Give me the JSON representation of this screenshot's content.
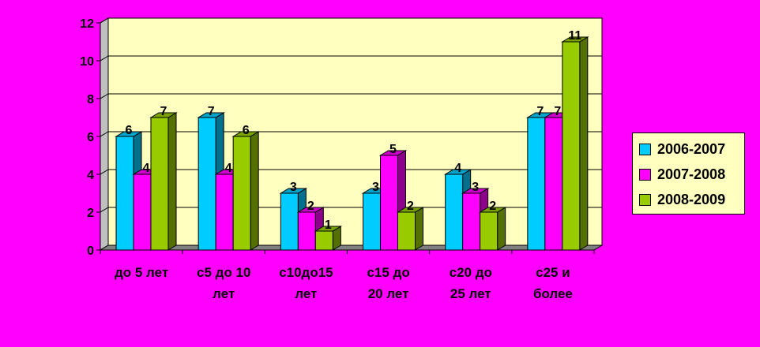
{
  "chart_data": {
    "type": "bar",
    "categories": [
      [
        "до 5 лет"
      ],
      [
        "с5 до 10",
        "лет"
      ],
      [
        "с10до15",
        "лет"
      ],
      [
        "с15 до",
        "20 лет"
      ],
      [
        "с20 до",
        "25 лет"
      ],
      [
        "с25 и",
        "более"
      ]
    ],
    "series": [
      {
        "name": "2006-2007",
        "color": "#00ccff",
        "values": [
          6,
          7,
          3,
          3,
          4,
          7
        ]
      },
      {
        "name": "2007-2008",
        "color": "#ff00ff",
        "values": [
          4,
          4,
          2,
          5,
          3,
          7
        ]
      },
      {
        "name": "2008-2009",
        "color": "#99cc00",
        "values": [
          7,
          6,
          1,
          2,
          2,
          11
        ]
      }
    ],
    "ylim": [
      0,
      12
    ],
    "yticks": [
      "0",
      "2",
      "4",
      "6",
      "8",
      "10",
      "12"
    ],
    "grid": true,
    "plot_background": "#ffffc0",
    "legend_position": "right"
  }
}
